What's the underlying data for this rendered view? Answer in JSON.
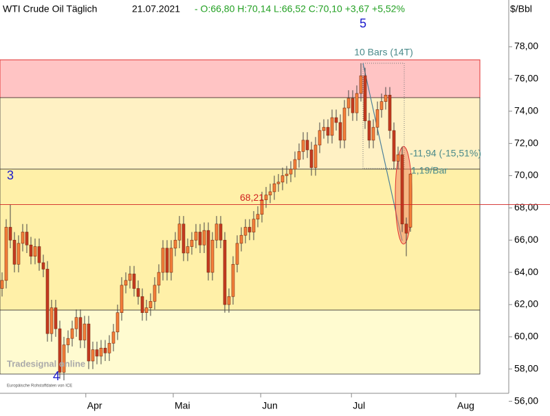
{
  "chart_data": {
    "type": "candlestick",
    "title": "WTI Crude Oil Täglich",
    "date": "21.07.2021",
    "quote": "- O:66,80 H:70,14 L:66,52 C:70,10 +3,67 +5,52%",
    "unit": "$/Bbl",
    "up_color": "#f47f3a",
    "down_color": "#c43a20",
    "open": [
      63.0,
      63.5,
      66.8,
      66.0,
      64.5,
      65.8,
      66.5,
      65.7,
      65.0,
      65.6,
      64.6,
      64.2,
      60.2,
      61.8,
      60.5,
      57.8,
      59.5,
      59.9,
      60.5,
      61.2,
      59.8,
      60.8,
      58.5,
      59.2,
      58.8,
      59.3,
      59.0,
      59.6,
      60.3,
      61.5,
      63.2,
      63.5,
      63.9,
      63.0,
      62.5,
      61.5,
      61.8,
      62.2,
      63.2,
      64.0,
      65.5,
      64.0,
      65.5,
      66.0,
      67.0,
      65.2,
      65.6,
      66.0,
      66.5,
      65.7,
      66.6,
      64.0,
      66.0,
      67.0,
      66.0,
      62.0,
      62.5,
      64.5,
      65.8,
      66.3,
      66.8,
      66.5,
      67.3,
      67.6,
      68.5,
      68.8,
      69.0,
      69.5,
      69.6,
      70.0,
      70.1,
      70.4,
      71.0,
      71.5,
      72.2,
      71.6,
      70.5,
      71.9,
      72.8,
      73.0,
      72.5,
      73.6,
      73.3,
      72.2,
      74.2,
      74.8,
      73.9,
      75.1,
      76.2,
      73.4,
      72.2,
      73.0,
      74.1,
      74.6,
      75.0,
      72.8,
      70.9,
      71.3,
      67.0,
      66.8
    ],
    "high": [
      64.0,
      67.3,
      68.2,
      66.5,
      66.3,
      67.0,
      67.0,
      66.2,
      66.1,
      66.1,
      65.1,
      64.7,
      62.3,
      62.3,
      61.0,
      60.0,
      60.4,
      61.0,
      61.7,
      61.7,
      61.3,
      61.3,
      59.7,
      59.7,
      59.8,
      59.8,
      60.1,
      60.8,
      62.0,
      63.7,
      64.0,
      64.4,
      64.4,
      63.5,
      63.0,
      62.3,
      62.7,
      63.7,
      64.5,
      66.0,
      66.0,
      66.0,
      66.5,
      67.5,
      67.5,
      66.1,
      66.5,
      67.0,
      67.0,
      67.1,
      67.1,
      66.5,
      67.5,
      67.5,
      66.5,
      63.0,
      65.0,
      66.3,
      66.8,
      67.3,
      67.3,
      67.8,
      68.1,
      69.0,
      69.3,
      69.5,
      70.0,
      70.1,
      70.5,
      70.6,
      70.9,
      71.5,
      72.0,
      72.7,
      72.7,
      72.1,
      72.4,
      73.3,
      73.5,
      73.5,
      74.1,
      74.1,
      73.8,
      74.7,
      75.3,
      75.3,
      75.6,
      76.98,
      76.7,
      73.9,
      73.5,
      74.6,
      75.1,
      75.5,
      75.5,
      73.3,
      71.8,
      71.8,
      67.4,
      70.14
    ],
    "low": [
      62.5,
      63.0,
      65.5,
      64.0,
      64.0,
      65.3,
      65.2,
      64.5,
      64.5,
      64.1,
      63.7,
      59.7,
      59.7,
      60.0,
      57.4,
      57.3,
      59.0,
      59.4,
      60.0,
      59.3,
      59.3,
      58.0,
      58.0,
      58.3,
      58.3,
      58.5,
      58.5,
      59.1,
      59.8,
      61.0,
      62.7,
      63.0,
      62.5,
      62.0,
      61.0,
      61.0,
      61.3,
      61.7,
      62.7,
      63.5,
      63.5,
      63.5,
      65.0,
      65.5,
      64.7,
      64.7,
      65.1,
      65.5,
      65.2,
      65.2,
      63.5,
      63.5,
      65.5,
      65.5,
      61.5,
      61.5,
      62.0,
      64.0,
      65.3,
      65.8,
      66.0,
      66.0,
      66.8,
      67.1,
      68.0,
      68.3,
      68.5,
      69.0,
      69.1,
      69.5,
      69.6,
      69.9,
      70.5,
      71.0,
      71.1,
      70.0,
      70.0,
      71.4,
      72.3,
      72.0,
      72.0,
      72.8,
      71.7,
      71.7,
      73.7,
      73.4,
      73.4,
      74.6,
      72.9,
      71.7,
      71.7,
      72.5,
      73.6,
      74.1,
      72.3,
      70.4,
      70.4,
      66.5,
      65.0,
      66.52
    ],
    "close": [
      63.5,
      66.8,
      66.0,
      64.5,
      65.8,
      66.5,
      65.7,
      65.0,
      65.6,
      64.6,
      64.2,
      60.2,
      61.8,
      60.5,
      57.8,
      59.5,
      59.9,
      60.5,
      61.2,
      59.8,
      60.8,
      58.5,
      59.2,
      58.8,
      59.3,
      59.0,
      59.6,
      60.3,
      61.5,
      63.2,
      63.5,
      63.9,
      63.0,
      62.5,
      61.5,
      61.8,
      62.2,
      63.2,
      64.0,
      65.5,
      64.0,
      65.5,
      66.0,
      67.0,
      65.2,
      65.6,
      66.0,
      66.5,
      65.7,
      66.6,
      64.0,
      66.0,
      67.0,
      66.0,
      62.0,
      62.5,
      64.5,
      65.8,
      66.3,
      66.8,
      66.5,
      67.3,
      67.6,
      68.5,
      68.8,
      69.0,
      69.5,
      69.6,
      70.0,
      70.1,
      70.4,
      71.0,
      71.5,
      72.2,
      71.6,
      70.5,
      71.9,
      72.8,
      73.0,
      72.5,
      73.6,
      73.3,
      72.2,
      74.2,
      74.8,
      73.9,
      75.1,
      76.2,
      73.4,
      72.2,
      73.0,
      74.1,
      74.6,
      75.0,
      72.8,
      70.9,
      71.3,
      67.0,
      66.43,
      70.1
    ],
    "ylim": [
      55.3,
      80.9
    ],
    "yticks": [
      {
        "value": 56,
        "label": "56,00"
      },
      {
        "value": 58,
        "label": "58,00"
      },
      {
        "value": 60,
        "label": "60,00"
      },
      {
        "value": 62,
        "label": "62,00"
      },
      {
        "value": 64,
        "label": "64,00"
      },
      {
        "value": 66,
        "label": "66,00"
      },
      {
        "value": 68,
        "label": "68,00"
      },
      {
        "value": 70,
        "label": "70,00"
      },
      {
        "value": 72,
        "label": "72,00"
      },
      {
        "value": 74,
        "label": "74,00"
      },
      {
        "value": 76,
        "label": "76,00"
      },
      {
        "value": 78,
        "label": "78,00"
      }
    ],
    "xticks": [
      {
        "value": 20.3,
        "label": "Apr"
      },
      {
        "value": 41.5,
        "label": "Mai"
      },
      {
        "value": 62.7,
        "label": "Jun"
      },
      {
        "value": 84.7,
        "label": "Jul"
      },
      {
        "value": 110,
        "label": "Aug"
      }
    ],
    "level": {
      "value": 68.21,
      "label": "68,21"
    },
    "waves": [
      "5",
      "3",
      "4"
    ],
    "annotations": [
      "10 Bars (14T)",
      "-11,94 (-15,51%)",
      "1,19/Bar"
    ],
    "logo": "Tradesignal online",
    "source": "Europäische Rohstoffdaten von ICE"
  }
}
